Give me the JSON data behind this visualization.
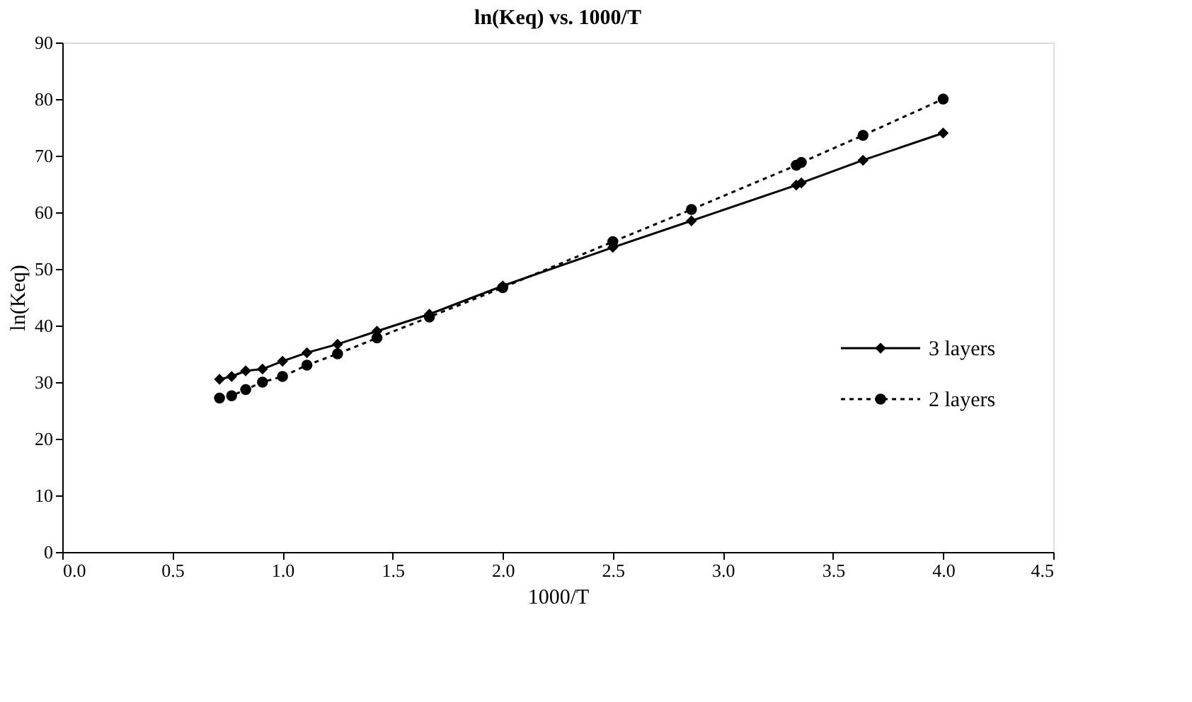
{
  "chart_data": {
    "type": "line",
    "title": "ln(Keq) vs. 1000/T",
    "xlabel": "1000/T",
    "ylabel": "ln(Keq)",
    "x": [
      0.714,
      0.769,
      0.833,
      0.909,
      1.0,
      1.111,
      1.25,
      1.429,
      1.667,
      2.0,
      2.5,
      2.857,
      3.333,
      3.356,
      3.636,
      4.0
    ],
    "series": [
      {
        "name": "3 layers",
        "color": "#000000",
        "marker": "diamond",
        "line_style": "solid",
        "values": [
          30.5,
          31,
          32,
          32.3,
          33.7,
          35.2,
          36.7,
          39,
          42,
          47,
          53.8,
          58.5,
          64.8,
          65.2,
          69.2,
          74
        ]
      },
      {
        "name": "2 layers",
        "color": "#000000",
        "marker": "circle",
        "line_style": "dotted",
        "values": [
          27.2,
          27.6,
          28.7,
          30,
          31,
          33,
          35,
          37.8,
          41.5,
          46.7,
          54.8,
          60.5,
          68.3,
          68.8,
          73.6,
          80
        ]
      }
    ],
    "xlim": [
      0,
      4.5
    ],
    "xticks": [
      {
        "value": 0,
        "label": "0.0"
      },
      {
        "value": 0.5,
        "label": "0.5"
      },
      {
        "value": 1,
        "label": "1.0"
      },
      {
        "value": 1.5,
        "label": "1.5"
      },
      {
        "value": 2,
        "label": "2.0"
      },
      {
        "value": 2.5,
        "label": "2.5"
      },
      {
        "value": 3,
        "label": "3.0"
      },
      {
        "value": 3.5,
        "label": "3.5"
      },
      {
        "value": 4,
        "label": "4.0"
      },
      {
        "value": 4.5,
        "label": "4.5"
      }
    ],
    "ylim": [
      0,
      90
    ],
    "yticks": [
      0,
      10,
      20,
      30,
      40,
      50,
      60,
      70,
      80,
      90
    ],
    "grid": false,
    "legend": "right"
  }
}
